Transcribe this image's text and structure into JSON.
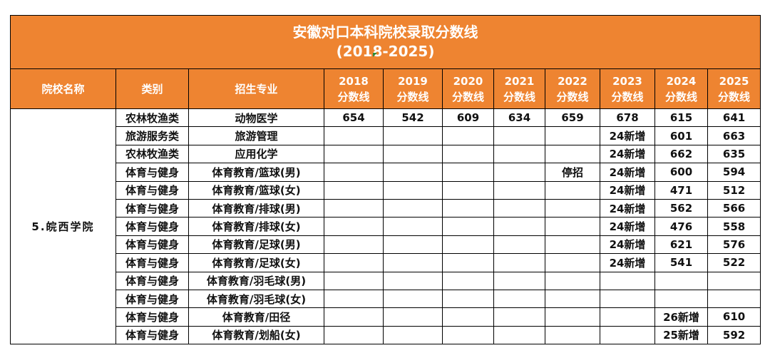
{
  "title_line1": "安徽对口本科院校录取分数线",
  "title_line2": "(2018-2025)",
  "headers": {
    "school": "院校名称",
    "category": "类别",
    "major": "招生专业",
    "years": [
      {
        "year": "2018",
        "label": "分数线"
      },
      {
        "year": "2019",
        "label": "分数线"
      },
      {
        "year": "2020",
        "label": "分数线"
      },
      {
        "year": "2021",
        "label": "分数线"
      },
      {
        "year": "2022",
        "label": "分数线"
      },
      {
        "year": "2023",
        "label": "分数线"
      },
      {
        "year": "2024",
        "label": "分数线"
      },
      {
        "year": "2025",
        "label": "分数线"
      }
    ]
  },
  "school_name": "5.皖西学院",
  "rows": [
    {
      "category": "农林牧渔类",
      "major": "动物医学",
      "scores": [
        "654",
        "542",
        "609",
        "634",
        "659",
        "678",
        "615",
        "641"
      ]
    },
    {
      "category": "旅游服务类",
      "major": "旅游管理",
      "scores": [
        "",
        "",
        "",
        "",
        "",
        "24新增",
        "601",
        "663"
      ]
    },
    {
      "category": "农林牧渔类",
      "major": "应用化学",
      "scores": [
        "",
        "",
        "",
        "",
        "",
        "24新增",
        "662",
        "635"
      ]
    },
    {
      "category": "体育与健身",
      "major": "体育教育/篮球(男)",
      "scores": [
        "",
        "",
        "",
        "",
        "停招",
        "24新增",
        "600",
        "594"
      ]
    },
    {
      "category": "体育与健身",
      "major": "体育教育/篮球(女)",
      "scores": [
        "",
        "",
        "",
        "",
        "",
        "24新增",
        "471",
        "512"
      ]
    },
    {
      "category": "体育与健身",
      "major": "体育教育/排球(男)",
      "scores": [
        "",
        "",
        "",
        "",
        "",
        "24新增",
        "562",
        "566"
      ]
    },
    {
      "category": "体育与健身",
      "major": "体育教育/排球(女)",
      "scores": [
        "",
        "",
        "",
        "",
        "",
        "24新增",
        "476",
        "558"
      ]
    },
    {
      "category": "体育与健身",
      "major": "体育教育/足球(男)",
      "scores": [
        "",
        "",
        "",
        "",
        "",
        "24新增",
        "621",
        "576"
      ]
    },
    {
      "category": "体育与健身",
      "major": "体育教育/足球(女)",
      "scores": [
        "",
        "",
        "",
        "",
        "",
        "24新增",
        "541",
        "522"
      ]
    },
    {
      "category": "体育与健身",
      "major": "体育教育/羽毛球(男)",
      "scores": [
        "",
        "",
        "",
        "",
        "",
        "",
        "",
        ""
      ]
    },
    {
      "category": "体育与健身",
      "major": "体育教育/羽毛球(女)",
      "scores": [
        "",
        "",
        "",
        "",
        "",
        "",
        "",
        ""
      ]
    },
    {
      "category": "体育与健身",
      "major": "体育教育/田径",
      "scores": [
        "",
        "",
        "",
        "",
        "",
        "",
        "26新增",
        "610"
      ]
    },
    {
      "category": "体育与健身",
      "major": "体育教育/划船(女)",
      "scores": [
        "",
        "",
        "",
        "",
        "",
        "",
        "25新增",
        "592"
      ]
    }
  ],
  "colors": {
    "header_bg": "#EE8431",
    "header_text": "#FFFFFF",
    "border": "#000000"
  }
}
